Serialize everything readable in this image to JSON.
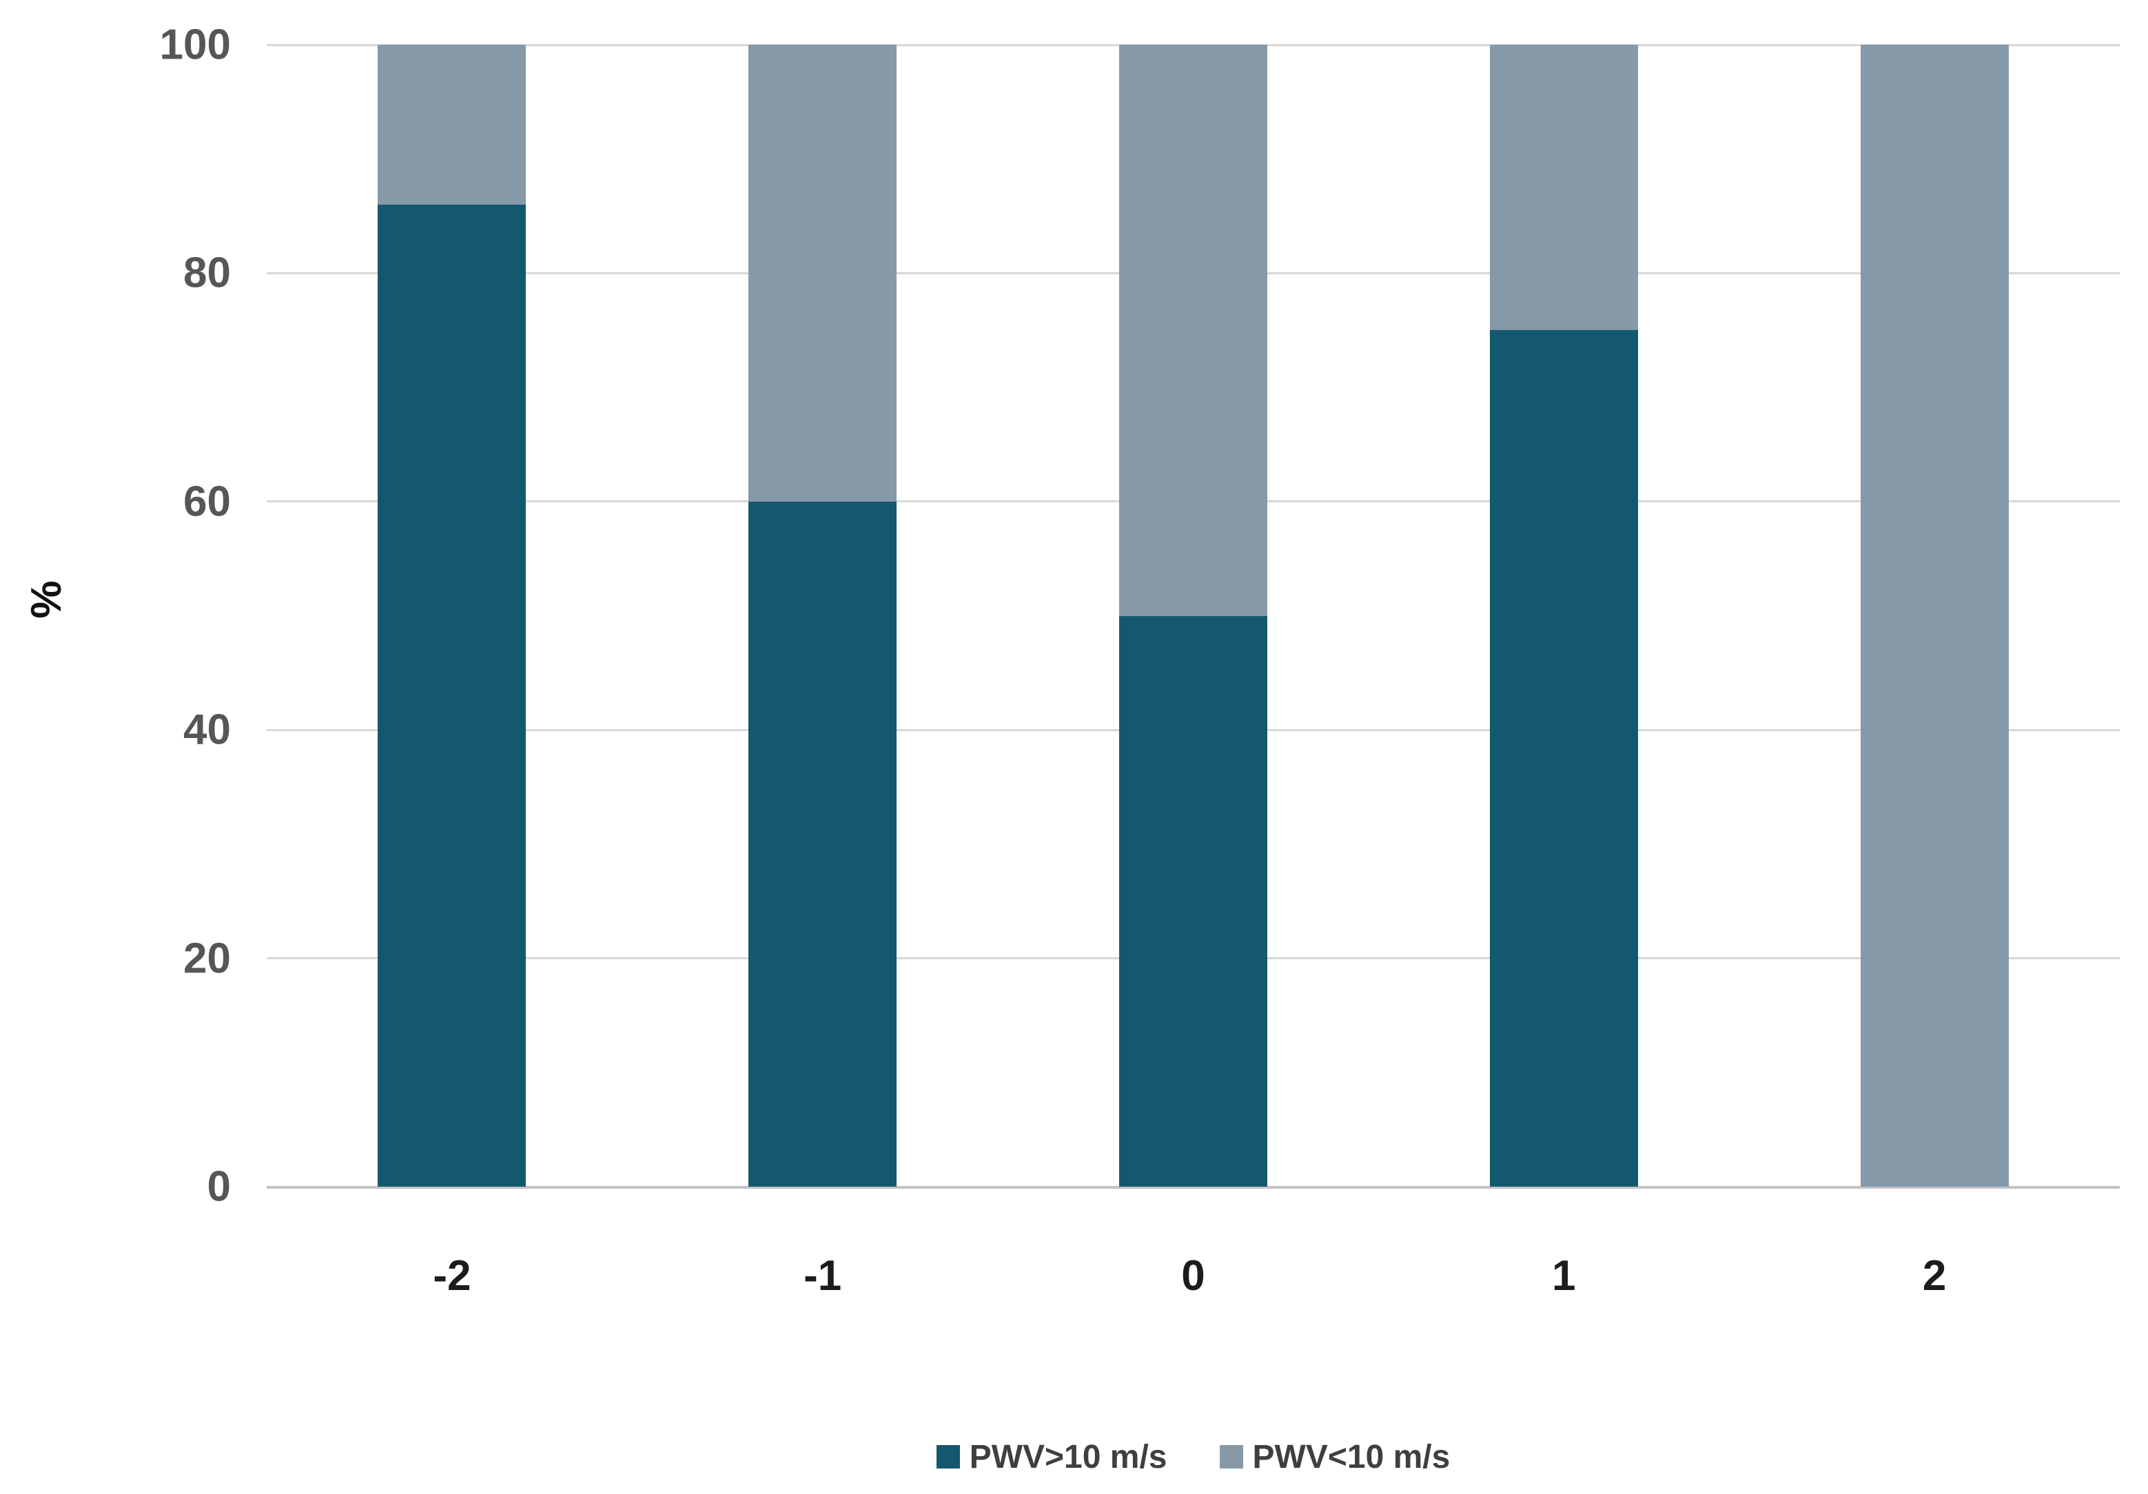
{
  "chart_data": {
    "type": "bar",
    "stacked": true,
    "orientation": "vertical",
    "title": "",
    "xlabel": "",
    "ylabel": "%",
    "categories": [
      "-2",
      "-1",
      "0",
      "1",
      "2"
    ],
    "series": [
      {
        "name": "PWV>10 m/s",
        "color": "#14586F",
        "values": [
          86,
          60,
          50,
          75,
          0
        ]
      },
      {
        "name": "PWV<10 m/s",
        "color": "#8699A9",
        "values": [
          14,
          40,
          50,
          25,
          100
        ]
      }
    ],
    "ylim": [
      0,
      100
    ],
    "yticks": [
      0,
      20,
      40,
      60,
      80,
      100
    ],
    "grid": true,
    "legend_position": "bottom"
  }
}
